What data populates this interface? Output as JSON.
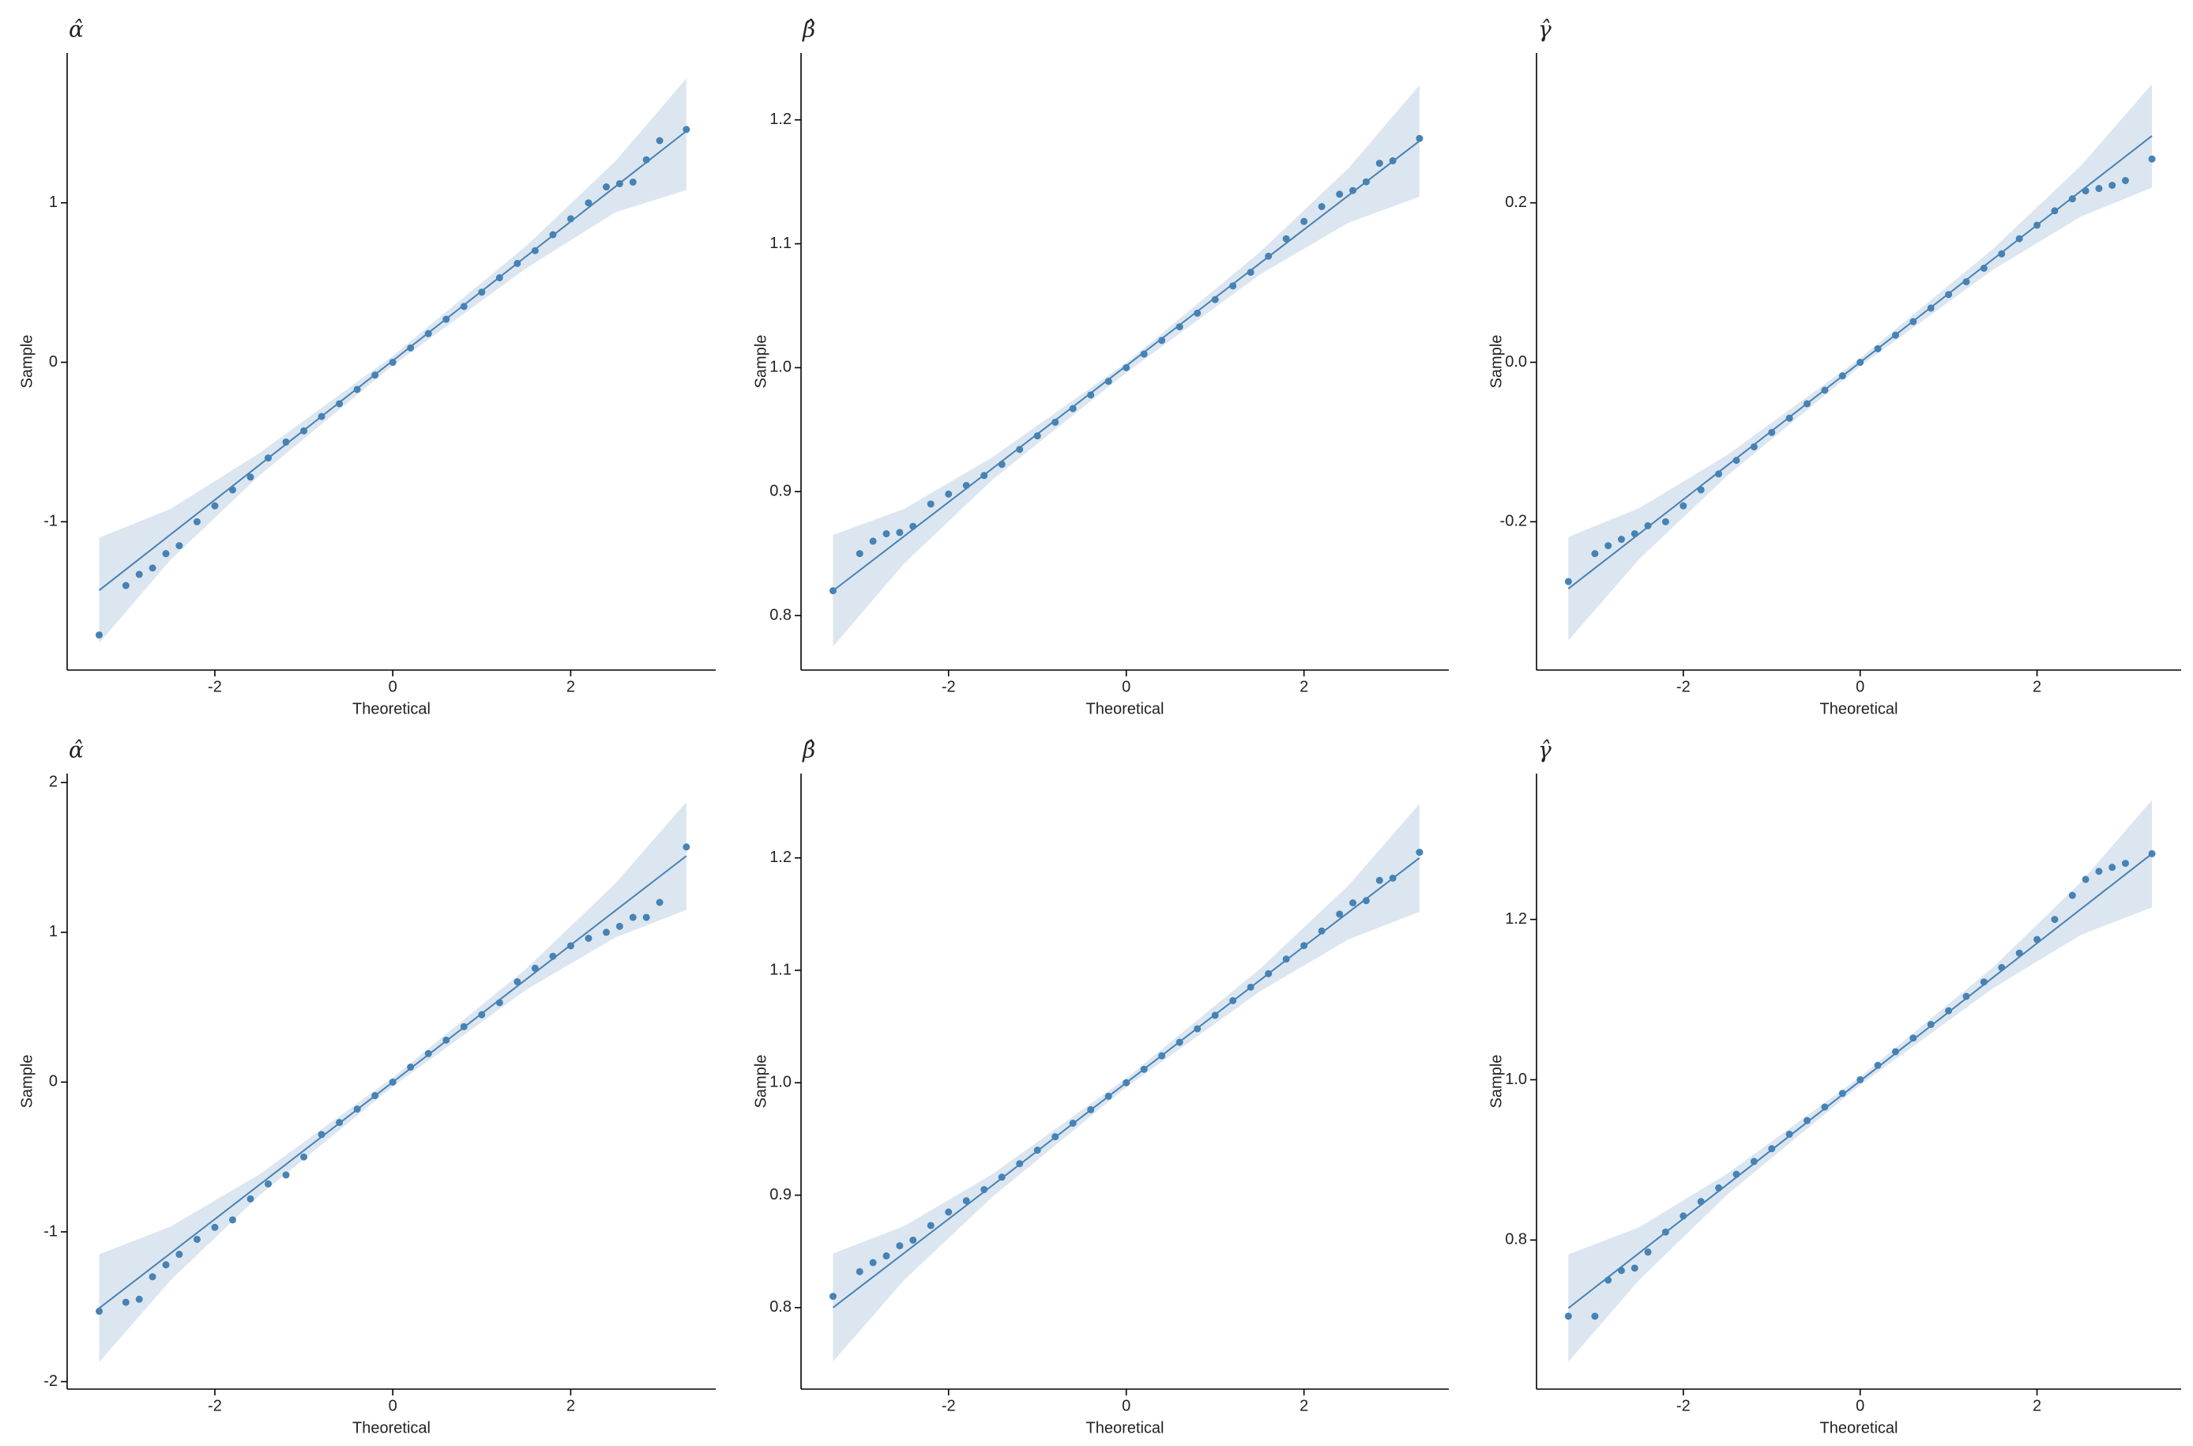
{
  "chart_data": [
    {
      "type": "scatter",
      "title": "α̂",
      "x_label": "Theoretical",
      "y_label": "Sample",
      "xlim": [
        -3.66,
        3.63
      ],
      "ylim": [
        -1.93,
        1.94
      ],
      "xticks": [
        -2,
        0,
        2
      ],
      "yticks": [
        -1,
        0,
        1
      ],
      "points": {
        "color": "#4682b4",
        "x": [
          -3.3,
          -3.0,
          -2.85,
          -2.7,
          -2.55,
          -2.4,
          -2.2,
          -2.0,
          -1.8,
          -1.6,
          -1.4,
          -1.2,
          -1.0,
          -0.8,
          -0.6,
          -0.4,
          -0.2,
          0,
          0.2,
          0.4,
          0.6,
          0.8,
          1.0,
          1.2,
          1.4,
          1.6,
          1.8,
          2.0,
          2.2,
          2.4,
          2.55,
          2.7,
          2.85,
          3.0,
          3.3
        ],
        "y": [
          -1.71,
          -1.4,
          -1.33,
          -1.29,
          -1.2,
          -1.15,
          -1.0,
          -0.9,
          -0.8,
          -0.72,
          -0.6,
          -0.5,
          -0.43,
          -0.34,
          -0.26,
          -0.17,
          -0.08,
          0.0,
          0.09,
          0.18,
          0.27,
          0.35,
          0.44,
          0.53,
          0.62,
          0.7,
          0.8,
          0.9,
          1.0,
          1.1,
          1.12,
          1.13,
          1.27,
          1.39,
          1.46
        ]
      },
      "line": {
        "color": "#4682b4",
        "x": [
          -3.3,
          3.3
        ],
        "values": [
          -1.43,
          1.45
        ]
      },
      "band": {
        "color": "#dce6f0",
        "x": [
          -3.3,
          -2.5,
          -1.5,
          0,
          1.5,
          2.5,
          3.3
        ],
        "lower": [
          -1.76,
          -1.24,
          -0.71,
          -0.02,
          0.59,
          0.94,
          1.08
        ],
        "upper": [
          -1.1,
          -0.92,
          -0.57,
          0.04,
          0.73,
          1.26,
          1.78
        ]
      }
    },
    {
      "type": "scatter",
      "title": "β̂",
      "x_label": "Theoretical",
      "y_label": "Sample",
      "xlim": [
        -3.66,
        3.63
      ],
      "ylim": [
        0.756,
        1.254
      ],
      "xticks": [
        -2,
        0,
        2
      ],
      "yticks": [
        0.8,
        0.9,
        {
          "value": 1,
          "label": "1.0"
        },
        1.1,
        1.2
      ],
      "points": {
        "color": "#4682b4",
        "x": [
          -3.3,
          -3.0,
          -2.85,
          -2.7,
          -2.55,
          -2.4,
          -2.2,
          -2.0,
          -1.8,
          -1.6,
          -1.4,
          -1.2,
          -1.0,
          -0.8,
          -0.6,
          -0.4,
          -0.2,
          0,
          0.2,
          0.4,
          0.6,
          0.8,
          1.0,
          1.2,
          1.4,
          1.6,
          1.8,
          2.0,
          2.2,
          2.4,
          2.55,
          2.7,
          2.85,
          3.0,
          3.3
        ],
        "y": [
          0.82,
          0.85,
          0.86,
          0.866,
          0.867,
          0.872,
          0.89,
          0.898,
          0.905,
          0.913,
          0.922,
          0.934,
          0.945,
          0.956,
          0.967,
          0.978,
          0.989,
          1.0,
          1.011,
          1.022,
          1.033,
          1.044,
          1.055,
          1.066,
          1.077,
          1.09,
          1.104,
          1.118,
          1.13,
          1.14,
          1.143,
          1.15,
          1.165,
          1.167,
          1.185
        ]
      },
      "line": {
        "color": "#4682b4",
        "x": [
          -3.3,
          3.3
        ],
        "values": [
          0.82,
          1.183
        ]
      },
      "band": {
        "color": "#dce6f0",
        "x": [
          -3.3,
          -2.5,
          -1.5,
          0,
          1.5,
          2.5,
          3.3
        ],
        "lower": [
          0.775,
          0.842,
          0.91,
          0.996,
          1.075,
          1.117,
          1.138
        ],
        "upper": [
          0.865,
          0.886,
          0.928,
          1.004,
          1.093,
          1.161,
          1.228
        ]
      }
    },
    {
      "type": "scatter",
      "title": "γ̂",
      "x_label": "Theoretical",
      "y_label": "Sample",
      "xlim": [
        -3.66,
        3.63
      ],
      "ylim": [
        -0.386,
        0.388
      ],
      "xticks": [
        -2,
        0,
        2
      ],
      "yticks": [
        -0.2,
        {
          "value": 0,
          "label": "0.0"
        },
        0.2
      ],
      "points": {
        "color": "#4682b4",
        "x": [
          -3.3,
          -3.0,
          -2.85,
          -2.7,
          -2.55,
          -2.4,
          -2.2,
          -2.0,
          -1.8,
          -1.6,
          -1.4,
          -1.2,
          -1.0,
          -0.8,
          -0.6,
          -0.4,
          -0.2,
          0,
          0.2,
          0.4,
          0.6,
          0.8,
          1.0,
          1.2,
          1.4,
          1.6,
          1.8,
          2.0,
          2.2,
          2.4,
          2.55,
          2.7,
          2.85,
          3.0,
          3.3
        ],
        "y": [
          -0.275,
          -0.24,
          -0.23,
          -0.222,
          -0.215,
          -0.205,
          -0.2,
          -0.18,
          -0.16,
          -0.14,
          -0.123,
          -0.106,
          -0.088,
          -0.07,
          -0.052,
          -0.035,
          -0.017,
          0,
          0.017,
          0.034,
          0.051,
          0.068,
          0.085,
          0.101,
          0.118,
          0.136,
          0.155,
          0.172,
          0.19,
          0.205,
          0.215,
          0.218,
          0.222,
          0.228,
          0.255
        ]
      },
      "line": {
        "color": "#4682b4",
        "x": [
          -3.3,
          3.3
        ],
        "values": [
          -0.284,
          0.284
        ]
      },
      "band": {
        "color": "#dce6f0",
        "x": [
          -3.3,
          -2.5,
          -1.5,
          0,
          1.5,
          2.5,
          3.3
        ],
        "lower": [
          -0.349,
          -0.247,
          -0.142,
          -0.005,
          0.116,
          0.183,
          0.219
        ],
        "upper": [
          -0.219,
          -0.183,
          -0.116,
          0.005,
          0.142,
          0.247,
          0.349
        ]
      }
    },
    {
      "type": "scatter",
      "title": "α̂",
      "x_label": "Theoretical",
      "y_label": "Sample",
      "xlim": [
        -3.66,
        3.63
      ],
      "ylim": [
        -2.05,
        2.06
      ],
      "xticks": [
        -2,
        0,
        2
      ],
      "yticks": [
        -2,
        -1,
        0,
        1,
        2
      ],
      "points": {
        "color": "#4682b4",
        "x": [
          -3.3,
          -3.0,
          -2.85,
          -2.7,
          -2.55,
          -2.4,
          -2.2,
          -2.0,
          -1.8,
          -1.6,
          -1.4,
          -1.2,
          -1.0,
          -0.8,
          -0.6,
          -0.4,
          -0.2,
          0,
          0.2,
          0.4,
          0.6,
          0.8,
          1.0,
          1.2,
          1.4,
          1.6,
          1.8,
          2.0,
          2.2,
          2.4,
          2.55,
          2.7,
          2.85,
          3.0,
          3.3
        ],
        "y": [
          -1.53,
          -1.47,
          -1.45,
          -1.3,
          -1.22,
          -1.15,
          -1.05,
          -0.97,
          -0.92,
          -0.78,
          -0.68,
          -0.62,
          -0.5,
          -0.35,
          -0.27,
          -0.18,
          -0.09,
          0.0,
          0.1,
          0.19,
          0.28,
          0.37,
          0.45,
          0.53,
          0.67,
          0.76,
          0.84,
          0.91,
          0.96,
          1.0,
          1.04,
          1.1,
          1.1,
          1.2,
          1.57
        ]
      },
      "line": {
        "color": "#4682b4",
        "x": [
          -3.3,
          3.3
        ],
        "values": [
          -1.51,
          1.51
        ]
      },
      "band": {
        "color": "#dce6f0",
        "x": [
          -3.3,
          -2.5,
          -1.5,
          0,
          1.5,
          2.5,
          3.3
        ],
        "lower": [
          -1.87,
          -1.325,
          -0.757,
          -0.03,
          0.617,
          0.965,
          1.15
        ],
        "upper": [
          -1.15,
          -0.965,
          -0.617,
          0.03,
          0.757,
          1.325,
          1.87
        ]
      }
    },
    {
      "type": "scatter",
      "title": "β̂",
      "x_label": "Theoretical",
      "y_label": "Sample",
      "xlim": [
        -3.66,
        3.63
      ],
      "ylim": [
        0.7275,
        1.275
      ],
      "xticks": [
        -2,
        0,
        2
      ],
      "yticks": [
        0.8,
        0.9,
        {
          "value": 1,
          "label": "1.0"
        },
        1.1,
        1.2
      ],
      "points": {
        "color": "#4682b4",
        "x": [
          -3.3,
          -3.0,
          -2.85,
          -2.7,
          -2.55,
          -2.4,
          -2.2,
          -2.0,
          -1.8,
          -1.6,
          -1.4,
          -1.2,
          -1.0,
          -0.8,
          -0.6,
          -0.4,
          -0.2,
          0,
          0.2,
          0.4,
          0.6,
          0.8,
          1.0,
          1.2,
          1.4,
          1.6,
          1.8,
          2.0,
          2.2,
          2.4,
          2.55,
          2.7,
          2.85,
          3.0,
          3.3
        ],
        "y": [
          0.81,
          0.832,
          0.84,
          0.846,
          0.855,
          0.86,
          0.873,
          0.885,
          0.895,
          0.905,
          0.916,
          0.928,
          0.94,
          0.952,
          0.964,
          0.976,
          0.988,
          1.0,
          1.012,
          1.024,
          1.036,
          1.048,
          1.06,
          1.073,
          1.085,
          1.097,
          1.11,
          1.122,
          1.135,
          1.15,
          1.16,
          1.162,
          1.18,
          1.182,
          1.205
        ]
      },
      "line": {
        "color": "#4682b4",
        "x": [
          -3.3,
          3.3
        ],
        "values": [
          0.8,
          1.2
        ]
      },
      "band": {
        "color": "#dce6f0",
        "x": [
          -3.3,
          -2.5,
          -1.5,
          0,
          1.5,
          2.5,
          3.3
        ],
        "lower": [
          0.752,
          0.8245,
          0.899,
          0.996,
          1.081,
          1.1275,
          1.152
        ],
        "upper": [
          0.848,
          0.8725,
          0.919,
          1.004,
          1.101,
          1.1755,
          1.248
        ]
      }
    },
    {
      "type": "scatter",
      "title": "γ̂",
      "x_label": "Theoretical",
      "y_label": "Sample",
      "xlim": [
        -3.66,
        3.63
      ],
      "ylim": [
        0.614,
        1.382
      ],
      "xticks": [
        -2,
        0,
        2
      ],
      "yticks": [
        0.8,
        {
          "value": 1,
          "label": "1.0"
        },
        1.2
      ],
      "points": {
        "color": "#4682b4",
        "x": [
          -3.3,
          -3.0,
          -2.85,
          -2.7,
          -2.55,
          -2.4,
          -2.2,
          -2.0,
          -1.8,
          -1.6,
          -1.4,
          -1.2,
          -1.0,
          -0.8,
          -0.6,
          -0.4,
          -0.2,
          0,
          0.2,
          0.4,
          0.6,
          0.8,
          1.0,
          1.2,
          1.4,
          1.6,
          1.8,
          2.0,
          2.2,
          2.4,
          2.55,
          2.7,
          2.85,
          3.0,
          3.3
        ],
        "y": [
          0.705,
          0.705,
          0.75,
          0.762,
          0.765,
          0.785,
          0.81,
          0.83,
          0.848,
          0.865,
          0.882,
          0.898,
          0.914,
          0.932,
          0.949,
          0.966,
          0.983,
          1.0,
          1.018,
          1.035,
          1.052,
          1.069,
          1.086,
          1.104,
          1.122,
          1.14,
          1.158,
          1.175,
          1.2,
          1.23,
          1.25,
          1.26,
          1.265,
          1.27,
          1.282
        ]
      },
      "line": {
        "color": "#4682b4",
        "x": [
          -3.3,
          3.3
        ],
        "values": [
          0.715,
          1.282
        ]
      },
      "band": {
        "color": "#dce6f0",
        "x": [
          -3.3,
          -2.5,
          -1.5,
          0,
          1.5,
          2.5,
          3.3
        ],
        "lower": [
          0.648,
          0.75,
          0.857,
          0.9935,
          1.114,
          1.181,
          1.215
        ],
        "upper": [
          0.782,
          0.816,
          0.883,
          1.0035,
          1.14,
          1.247,
          1.349
        ]
      }
    }
  ]
}
